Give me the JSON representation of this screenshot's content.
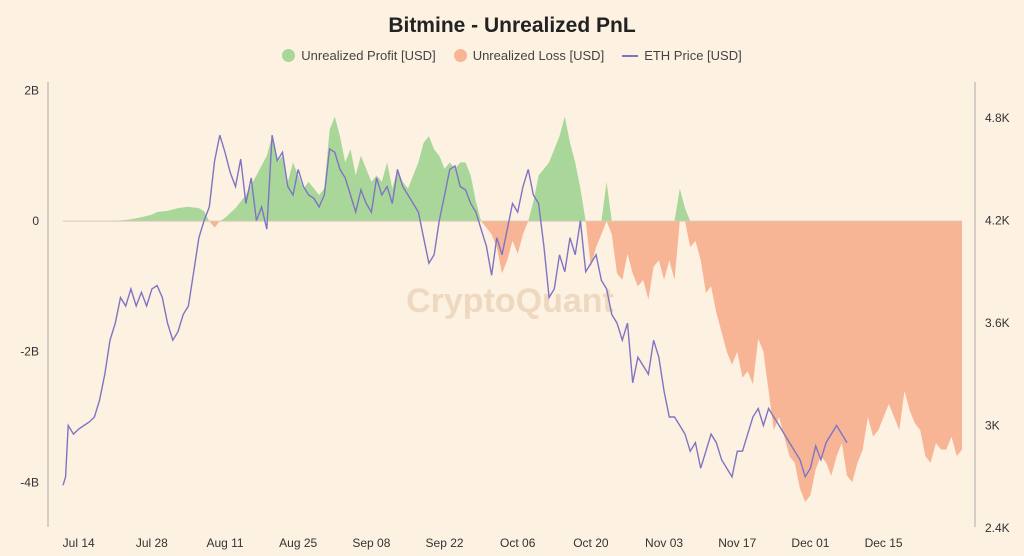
{
  "colors": {
    "background": "#fdf1e2",
    "profit": "#a9d79a",
    "loss": "#f7b595",
    "eth": "#7f74c4",
    "axis": "#333333"
  },
  "watermark": "CryptoQuant",
  "chart_data": {
    "type": "area",
    "title": "Bitmine - Unrealized PnL",
    "legend": [
      {
        "key": "profit",
        "label": "Unrealized Profit [USD]"
      },
      {
        "key": "loss",
        "label": "Unrealized Loss [USD]"
      },
      {
        "key": "eth",
        "label": "ETH Price [USD]"
      }
    ],
    "x_ticks": [
      "Jul 14",
      "Jul 28",
      "Aug 11",
      "Aug 25",
      "Sep 08",
      "Sep 22",
      "Oct 06",
      "Oct 20",
      "Nov 03",
      "Nov 17",
      "Dec 01",
      "Dec 15"
    ],
    "left_axis": {
      "ticks": [
        2,
        0,
        -2,
        -4
      ],
      "labels": [
        "2B",
        "0",
        "-2B",
        "-4B"
      ],
      "ylim": [
        -4.7,
        2.1
      ],
      "unit": "B USD"
    },
    "right_axis": {
      "ticks": [
        4800,
        4200,
        3600,
        3000,
        2400
      ],
      "labels": [
        "4.8K",
        "4.2K",
        "3.6K",
        "3K",
        "2.4K"
      ],
      "ylim": [
        2400,
        5000
      ],
      "unit": "USD"
    },
    "series": [
      {
        "name": "Unrealized Profit/Loss [USD]",
        "unit": "B USD",
        "points": [
          [
            9,
            0
          ],
          [
            11,
            0.01
          ],
          [
            13,
            0.03
          ],
          [
            15,
            0.06
          ],
          [
            17,
            0.1
          ],
          [
            18,
            0.14
          ],
          [
            20,
            0.16
          ],
          [
            22,
            0.2
          ],
          [
            24,
            0.22
          ],
          [
            26,
            0.2
          ],
          [
            27,
            0.15
          ],
          [
            28,
            0
          ],
          [
            29,
            -0.1
          ],
          [
            30,
            0
          ],
          [
            31,
            0.05
          ],
          [
            33,
            0.2
          ],
          [
            35,
            0.4
          ],
          [
            37,
            0.7
          ],
          [
            39,
            1
          ],
          [
            40,
            1.3
          ],
          [
            41,
            0.9
          ],
          [
            42,
            1.0
          ],
          [
            43,
            0.6
          ],
          [
            44,
            0.9
          ],
          [
            45,
            0.7
          ],
          [
            46,
            0.5
          ],
          [
            47,
            0.6
          ],
          [
            48,
            0.5
          ],
          [
            49,
            0.4
          ],
          [
            50,
            0.5
          ],
          [
            51,
            1.4
          ],
          [
            52,
            1.6
          ],
          [
            53,
            1.3
          ],
          [
            54,
            0.9
          ],
          [
            55,
            1.1
          ],
          [
            56,
            0.7
          ],
          [
            57,
            1.0
          ],
          [
            58,
            0.8
          ],
          [
            59,
            0.6
          ],
          [
            60,
            0.7
          ],
          [
            61,
            0.6
          ],
          [
            62,
            0.9
          ],
          [
            63,
            0.5
          ],
          [
            64,
            0.8
          ],
          [
            65,
            0.6
          ],
          [
            66,
            0.5
          ],
          [
            67,
            0.7
          ],
          [
            68,
            0.9
          ],
          [
            69,
            1.2
          ],
          [
            70,
            1.3
          ],
          [
            71,
            1.1
          ],
          [
            72,
            1.0
          ],
          [
            73,
            0.8
          ],
          [
            74,
            0.9
          ],
          [
            75,
            0.8
          ],
          [
            76,
            0.9
          ],
          [
            77,
            0.9
          ],
          [
            78,
            0.7
          ],
          [
            79,
            0.3
          ],
          [
            80,
            0
          ],
          [
            81,
            -0.1
          ],
          [
            82,
            -0.2
          ],
          [
            83,
            -0.4
          ],
          [
            84,
            -0.8
          ],
          [
            85,
            -0.6
          ],
          [
            86,
            -0.3
          ],
          [
            87,
            -0.5
          ],
          [
            88,
            -0.2
          ],
          [
            89,
            0
          ],
          [
            90,
            0.3
          ],
          [
            91,
            0.7
          ],
          [
            92,
            0.8
          ],
          [
            93,
            0.9
          ],
          [
            94,
            1.1
          ],
          [
            95,
            1.3
          ],
          [
            96,
            1.6
          ],
          [
            97,
            1.2
          ],
          [
            98,
            0.9
          ],
          [
            99,
            0.5
          ],
          [
            100,
            0
          ],
          [
            101,
            -0.7
          ],
          [
            102,
            -0.4
          ],
          [
            103,
            -0.2
          ],
          [
            104,
            0.6
          ],
          [
            105,
            -0.2
          ],
          [
            106,
            -0.8
          ],
          [
            107,
            -0.9
          ],
          [
            108,
            -0.5
          ],
          [
            109,
            -0.8
          ],
          [
            110,
            -1
          ],
          [
            111,
            -0.9
          ],
          [
            112,
            -1.2
          ],
          [
            113,
            -0.7
          ],
          [
            114,
            -0.6
          ],
          [
            115,
            -0.9
          ],
          [
            116,
            -0.6
          ],
          [
            117,
            -0.9
          ],
          [
            118,
            0.5
          ],
          [
            119,
            0.2
          ],
          [
            120,
            -0.4
          ],
          [
            121,
            -0.3
          ],
          [
            122,
            -0.6
          ],
          [
            123,
            -1.1
          ],
          [
            124,
            -1.0
          ],
          [
            125,
            -1.4
          ],
          [
            126,
            -1.7
          ],
          [
            127,
            -2
          ],
          [
            128,
            -2.2
          ],
          [
            129,
            -2.0
          ],
          [
            130,
            -2.4
          ],
          [
            131,
            -2.3
          ],
          [
            132,
            -2.5
          ],
          [
            133,
            -1.8
          ],
          [
            134,
            -2.0
          ],
          [
            135,
            -2.6
          ],
          [
            136,
            -3.2
          ],
          [
            137,
            -3.0
          ],
          [
            138,
            -3.3
          ],
          [
            139,
            -3.6
          ],
          [
            140,
            -3.7
          ],
          [
            141,
            -4.1
          ],
          [
            142,
            -4.3
          ],
          [
            143,
            -4.2
          ],
          [
            144,
            -3.8
          ],
          [
            145,
            -3.6
          ],
          [
            146,
            -3.7
          ],
          [
            147,
            -3.9
          ],
          [
            148,
            -3.6
          ],
          [
            149,
            -3.4
          ],
          [
            150,
            -3.9
          ],
          [
            151,
            -4.0
          ],
          [
            152,
            -3.7
          ],
          [
            153,
            -3.5
          ],
          [
            154,
            -3.0
          ],
          [
            155,
            -3.3
          ],
          [
            156,
            -3.2
          ],
          [
            157,
            -3.0
          ],
          [
            158,
            -2.8
          ],
          [
            159,
            -3.0
          ],
          [
            160,
            -3.2
          ],
          [
            161,
            -2.6
          ],
          [
            162,
            -2.9
          ],
          [
            163,
            -3.1
          ],
          [
            164,
            -3.2
          ],
          [
            165,
            -3.6
          ],
          [
            166,
            -3.7
          ],
          [
            167,
            -3.4
          ],
          [
            168,
            -3.5
          ],
          [
            169,
            -3.5
          ],
          [
            170,
            -3.3
          ],
          [
            171,
            -3.6
          ],
          [
            172,
            -3.5
          ]
        ]
      },
      {
        "name": "ETH Price [USD]",
        "unit": "USD",
        "points": [
          [
            0,
            2650
          ],
          [
            0.5,
            2700
          ],
          [
            1,
            3000
          ],
          [
            2,
            2950
          ],
          [
            3,
            2980
          ],
          [
            4,
            3000
          ],
          [
            5,
            3020
          ],
          [
            6,
            3050
          ],
          [
            7,
            3150
          ],
          [
            8,
            3300
          ],
          [
            9,
            3500
          ],
          [
            10,
            3600
          ],
          [
            11,
            3750
          ],
          [
            12,
            3700
          ],
          [
            13,
            3800
          ],
          [
            14,
            3700
          ],
          [
            15,
            3780
          ],
          [
            16,
            3700
          ],
          [
            17,
            3800
          ],
          [
            18,
            3820
          ],
          [
            19,
            3750
          ],
          [
            20,
            3600
          ],
          [
            21,
            3500
          ],
          [
            22,
            3550
          ],
          [
            23,
            3650
          ],
          [
            24,
            3700
          ],
          [
            25,
            3900
          ],
          [
            26,
            4100
          ],
          [
            27,
            4200
          ],
          [
            28,
            4280
          ],
          [
            29,
            4550
          ],
          [
            30,
            4700
          ],
          [
            31,
            4600
          ],
          [
            32,
            4480
          ],
          [
            33,
            4400
          ],
          [
            34,
            4560
          ],
          [
            35,
            4300
          ],
          [
            36,
            4450
          ],
          [
            37,
            4200
          ],
          [
            38,
            4280
          ],
          [
            39,
            4150
          ],
          [
            40,
            4700
          ],
          [
            41,
            4550
          ],
          [
            42,
            4600
          ],
          [
            43,
            4400
          ],
          [
            44,
            4350
          ],
          [
            45,
            4500
          ],
          [
            46,
            4400
          ],
          [
            47,
            4350
          ],
          [
            48,
            4330
          ],
          [
            49,
            4280
          ],
          [
            50,
            4350
          ],
          [
            51,
            4620
          ],
          [
            52,
            4600
          ],
          [
            53,
            4500
          ],
          [
            54,
            4450
          ],
          [
            55,
            4350
          ],
          [
            56,
            4250
          ],
          [
            57,
            4380
          ],
          [
            58,
            4300
          ],
          [
            59,
            4250
          ],
          [
            60,
            4450
          ],
          [
            61,
            4350
          ],
          [
            62,
            4400
          ],
          [
            63,
            4300
          ],
          [
            64,
            4500
          ],
          [
            65,
            4400
          ],
          [
            66,
            4350
          ],
          [
            67,
            4300
          ],
          [
            68,
            4250
          ],
          [
            69,
            4100
          ],
          [
            70,
            3950
          ],
          [
            71,
            4000
          ],
          [
            72,
            4200
          ],
          [
            73,
            4350
          ],
          [
            74,
            4500
          ],
          [
            75,
            4520
          ],
          [
            76,
            4400
          ],
          [
            77,
            4380
          ],
          [
            78,
            4300
          ],
          [
            79,
            4250
          ],
          [
            80,
            4150
          ],
          [
            81,
            4050
          ],
          [
            82,
            3880
          ],
          [
            83,
            4100
          ],
          [
            84,
            4000
          ],
          [
            85,
            4150
          ],
          [
            86,
            4300
          ],
          [
            87,
            4250
          ],
          [
            88,
            4400
          ],
          [
            89,
            4500
          ],
          [
            90,
            4350
          ],
          [
            91,
            4300
          ],
          [
            92,
            4050
          ],
          [
            93,
            3750
          ],
          [
            94,
            3800
          ],
          [
            95,
            4000
          ],
          [
            96,
            3900
          ],
          [
            97,
            4100
          ],
          [
            98,
            4000
          ],
          [
            99,
            4200
          ],
          [
            100,
            3900
          ],
          [
            101,
            3950
          ],
          [
            102,
            4000
          ],
          [
            103,
            3850
          ],
          [
            104,
            3800
          ],
          [
            105,
            3650
          ],
          [
            106,
            3600
          ],
          [
            107,
            3500
          ],
          [
            108,
            3600
          ],
          [
            109,
            3250
          ],
          [
            110,
            3400
          ],
          [
            111,
            3350
          ],
          [
            112,
            3300
          ],
          [
            113,
            3500
          ],
          [
            114,
            3400
          ],
          [
            115,
            3200
          ],
          [
            116,
            3050
          ],
          [
            117,
            3050
          ],
          [
            118,
            3000
          ],
          [
            119,
            2950
          ],
          [
            120,
            2850
          ],
          [
            121,
            2900
          ],
          [
            122,
            2750
          ],
          [
            123,
            2850
          ],
          [
            124,
            2950
          ],
          [
            125,
            2900
          ],
          [
            126,
            2800
          ],
          [
            127,
            2750
          ],
          [
            128,
            2700
          ],
          [
            129,
            2850
          ],
          [
            130,
            2850
          ],
          [
            131,
            2950
          ],
          [
            132,
            3050
          ],
          [
            133,
            3100
          ],
          [
            134,
            3000
          ],
          [
            135,
            3100
          ],
          [
            136,
            3050
          ],
          [
            137,
            3000
          ],
          [
            138,
            2950
          ],
          [
            139,
            2900
          ],
          [
            140,
            2850
          ],
          [
            141,
            2800
          ],
          [
            142,
            2700
          ],
          [
            143,
            2750
          ],
          [
            144,
            2880
          ],
          [
            145,
            2800
          ],
          [
            146,
            2900
          ],
          [
            147,
            2950
          ],
          [
            148,
            3000
          ],
          [
            149,
            2950
          ],
          [
            150,
            2900
          ]
        ]
      }
    ]
  }
}
